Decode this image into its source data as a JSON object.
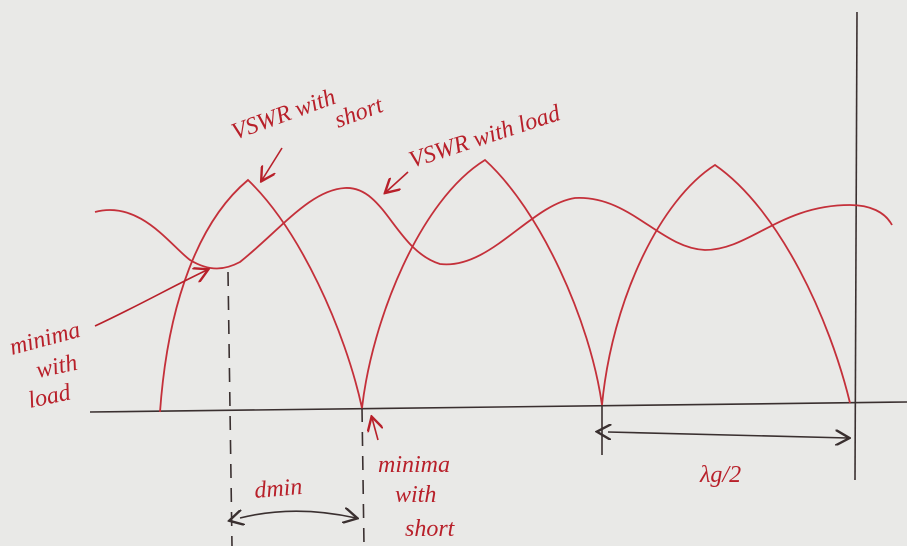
{
  "labels": {
    "vswr_short": [
      "VSWR with",
      "short"
    ],
    "vswr_load": "VSWR with load",
    "minima_load": [
      "minima",
      "with",
      "load"
    ],
    "dmin": "dmin",
    "minima_short": [
      "minima",
      "with",
      "short"
    ],
    "half_wavelength": "λg/2"
  }
}
